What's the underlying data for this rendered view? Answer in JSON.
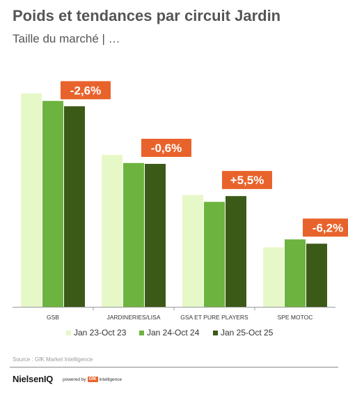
{
  "header": {
    "title": "Poids et tendances par circuit Jardin",
    "subtitle": "Taille du marché | …"
  },
  "footer": {
    "source": "Source : GfK Market Intelligence",
    "brand": "NielsenIQ",
    "powered_by": "powered by",
    "gfk_logo": "GfK",
    "intelligence": "intelligence"
  },
  "colors": {
    "series": [
      "#e6f8c8",
      "#6db33f",
      "#3b5a17"
    ],
    "badge": "#e8632b",
    "badge_text": "#ffffff",
    "axis": "#9a9a9a"
  },
  "chart_data": {
    "type": "bar",
    "categories": [
      "GSB",
      "JARDINERIES/LISA",
      "GSA ET PURE PLAYERS",
      "SPE MOTOC"
    ],
    "series": [
      {
        "name": "Jan 23-Oct 23",
        "values": [
          100,
          71.2,
          52.4,
          27.9
        ]
      },
      {
        "name": "Jan 24-Oct 24",
        "values": [
          96.5,
          67.4,
          49.2,
          31.6
        ]
      },
      {
        "name": "Jan 25-Oct 25",
        "values": [
          94.0,
          67.0,
          51.9,
          29.6
        ]
      }
    ],
    "annotations": [
      "-2,6%",
      "-0,6%",
      "+5,5%",
      "-6,2%"
    ],
    "ylim": [
      0,
      100
    ],
    "grid": false,
    "legend": "bottom"
  }
}
